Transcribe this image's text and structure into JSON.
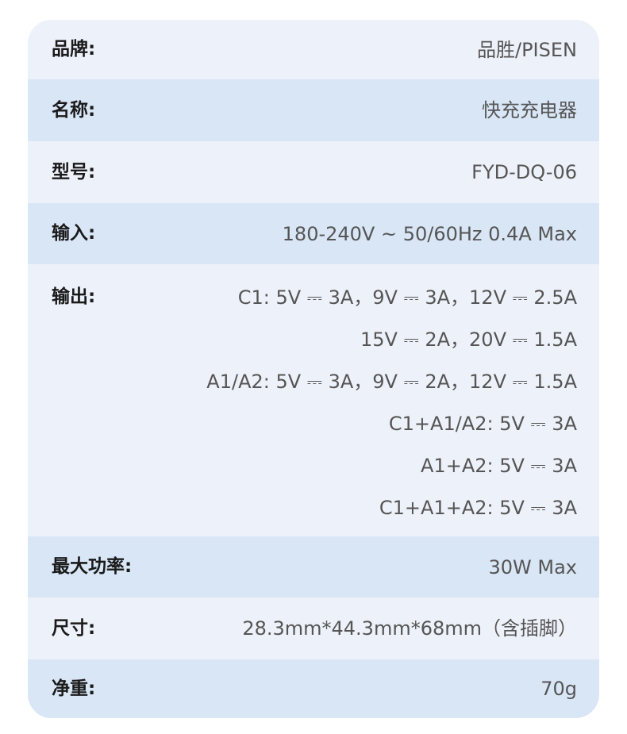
{
  "specs": [
    {
      "label": "品牌:",
      "value": "品胜/PISEN"
    },
    {
      "label": "名称:",
      "value": "快充充电器"
    },
    {
      "label": "型号:",
      "value": "FYD-DQ-06"
    },
    {
      "label": "输入:",
      "value": "180-240V ~  50/60Hz 0.4A Max"
    },
    {
      "label": "输出:",
      "lines": [
        "C1:  5V ⎓ 3A，9V ⎓ 3A，12V ⎓ 2.5A",
        "15V ⎓ 2A，20V ⎓ 1.5A",
        "A1/A2:  5V ⎓ 3A，9V ⎓ 2A，12V ⎓ 1.5A",
        "C1+A1/A2:  5V ⎓ 3A",
        "A1+A2:  5V ⎓ 3A",
        "C1+A1+A2:  5V ⎓ 3A"
      ]
    },
    {
      "label": "最大功率:",
      "value": "30W  Max"
    },
    {
      "label": "尺寸:",
      "value": "28.3mm*44.3mm*68mm（含插脚）"
    },
    {
      "label": "净重:",
      "value": "70g"
    }
  ],
  "colors": {
    "row_light": "#edf1f9",
    "row_blue": "#d9e6f6",
    "label": "#1a1a1a",
    "value": "#555555"
  }
}
